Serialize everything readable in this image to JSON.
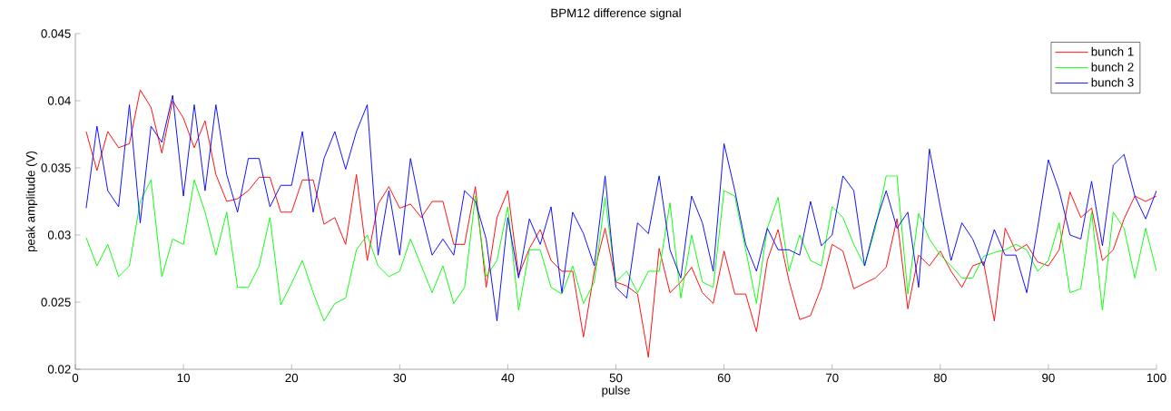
{
  "chart_data": {
    "type": "line",
    "title": "BPM12 difference signal",
    "xlabel": "pulse",
    "ylabel": "peak amplitude (V)",
    "x": [
      1,
      2,
      3,
      4,
      5,
      6,
      7,
      8,
      9,
      10,
      11,
      12,
      13,
      14,
      15,
      16,
      17,
      18,
      19,
      20,
      21,
      22,
      23,
      24,
      25,
      26,
      27,
      28,
      29,
      30,
      31,
      32,
      33,
      34,
      35,
      36,
      37,
      38,
      39,
      40,
      41,
      42,
      43,
      44,
      45,
      46,
      47,
      48,
      49,
      50,
      51,
      52,
      53,
      54,
      55,
      56,
      57,
      58,
      59,
      60,
      61,
      62,
      63,
      64,
      65,
      66,
      67,
      68,
      69,
      70,
      71,
      72,
      73,
      74,
      75,
      76,
      77,
      78,
      79,
      80,
      81,
      82,
      83,
      84,
      85,
      86,
      87,
      88,
      89,
      90,
      91,
      92,
      93,
      94,
      95,
      96,
      97,
      98,
      99,
      100
    ],
    "series": [
      {
        "name": "bunch 1",
        "color": "#ff0000",
        "values": [
          0.0377,
          0.0348,
          0.0377,
          0.0365,
          0.0368,
          0.0408,
          0.0395,
          0.0361,
          0.04,
          0.0387,
          0.0365,
          0.0385,
          0.0345,
          0.0325,
          0.0327,
          0.0333,
          0.0343,
          0.0343,
          0.0317,
          0.0317,
          0.0341,
          0.0341,
          0.0308,
          0.0313,
          0.0293,
          0.0345,
          0.0281,
          0.0323,
          0.0336,
          0.032,
          0.0323,
          0.0313,
          0.0325,
          0.0325,
          0.0293,
          0.0293,
          0.0336,
          0.0261,
          0.0313,
          0.0333,
          0.027,
          0.029,
          0.0304,
          0.0281,
          0.0273,
          0.0273,
          0.0224,
          0.0273,
          0.0305,
          0.0265,
          0.0262,
          0.0256,
          0.0209,
          0.029,
          0.0257,
          0.0265,
          0.0276,
          0.0257,
          0.0249,
          0.0288,
          0.0256,
          0.0256,
          0.0228,
          0.0281,
          0.0304,
          0.0266,
          0.0237,
          0.024,
          0.0261,
          0.0293,
          0.0288,
          0.026,
          0.0264,
          0.0268,
          0.0276,
          0.0312,
          0.0245,
          0.0285,
          0.0277,
          0.0288,
          0.0273,
          0.0261,
          0.0277,
          0.028,
          0.0236,
          0.0305,
          0.0288,
          0.0293,
          0.028,
          0.0277,
          0.0289,
          0.0332,
          0.0313,
          0.032,
          0.0281,
          0.0289,
          0.0312,
          0.0329,
          0.0325,
          0.0329
        ]
      },
      {
        "name": "bunch 2",
        "color": "#00ff00",
        "values": [
          0.0298,
          0.0277,
          0.0293,
          0.0269,
          0.0277,
          0.0325,
          0.0341,
          0.0269,
          0.0297,
          0.0293,
          0.0341,
          0.0317,
          0.0285,
          0.0317,
          0.0261,
          0.0261,
          0.0277,
          0.0313,
          0.0248,
          0.0264,
          0.0281,
          0.0257,
          0.0236,
          0.0249,
          0.0253,
          0.0289,
          0.03,
          0.0277,
          0.0269,
          0.0273,
          0.0297,
          0.0277,
          0.0257,
          0.0277,
          0.0249,
          0.0261,
          0.0329,
          0.0269,
          0.0281,
          0.0321,
          0.0244,
          0.0289,
          0.0289,
          0.0261,
          0.0256,
          0.0277,
          0.0249,
          0.0265,
          0.0328,
          0.0265,
          0.0273,
          0.0257,
          0.0273,
          0.0273,
          0.0324,
          0.0253,
          0.03,
          0.0265,
          0.0261,
          0.0333,
          0.0329,
          0.0289,
          0.0249,
          0.0305,
          0.0328,
          0.0273,
          0.03,
          0.0281,
          0.0277,
          0.0321,
          0.0313,
          0.0293,
          0.0277,
          0.0305,
          0.0344,
          0.0344,
          0.0256,
          0.0316,
          0.0297,
          0.0285,
          0.0277,
          0.0268,
          0.0268,
          0.0284,
          0.0287,
          0.0289,
          0.0293,
          0.0289,
          0.0273,
          0.0281,
          0.0309,
          0.0257,
          0.026,
          0.0317,
          0.0244,
          0.0317,
          0.0305,
          0.0268,
          0.0305,
          0.0273
        ]
      },
      {
        "name": "bunch 3",
        "color": "#0000ff",
        "values": [
          0.032,
          0.0381,
          0.0333,
          0.0321,
          0.0397,
          0.0309,
          0.0381,
          0.0369,
          0.0404,
          0.0329,
          0.0397,
          0.0333,
          0.0397,
          0.0345,
          0.0317,
          0.0357,
          0.0357,
          0.0321,
          0.0337,
          0.0337,
          0.0377,
          0.0317,
          0.0357,
          0.0377,
          0.0349,
          0.0377,
          0.0397,
          0.0285,
          0.0333,
          0.0285,
          0.0357,
          0.0317,
          0.0285,
          0.0297,
          0.0285,
          0.0333,
          0.0325,
          0.0297,
          0.0236,
          0.0313,
          0.0268,
          0.0312,
          0.0293,
          0.0321,
          0.0257,
          0.0317,
          0.0301,
          0.0277,
          0.0344,
          0.0261,
          0.0253,
          0.0309,
          0.0301,
          0.0344,
          0.0289,
          0.0268,
          0.0329,
          0.0309,
          0.0273,
          0.0368,
          0.0333,
          0.0293,
          0.0273,
          0.0305,
          0.0289,
          0.0289,
          0.0285,
          0.0325,
          0.0292,
          0.03,
          0.0344,
          0.0333,
          0.0277,
          0.0308,
          0.0333,
          0.0305,
          0.0317,
          0.0261,
          0.0364,
          0.0321,
          0.0281,
          0.0309,
          0.0297,
          0.0277,
          0.0304,
          0.0285,
          0.0285,
          0.0257,
          0.0305,
          0.0356,
          0.0333,
          0.03,
          0.0297,
          0.034,
          0.0292,
          0.0352,
          0.036,
          0.0329,
          0.0312,
          0.0333
        ]
      }
    ],
    "xlim": [
      0,
      100
    ],
    "ylim": [
      0.02,
      0.045
    ],
    "xticks": [
      0,
      10,
      20,
      30,
      40,
      50,
      60,
      70,
      80,
      90,
      100
    ],
    "yticks": [
      0.02,
      0.025,
      0.03,
      0.035,
      0.04,
      0.045
    ],
    "legend": "top right"
  }
}
